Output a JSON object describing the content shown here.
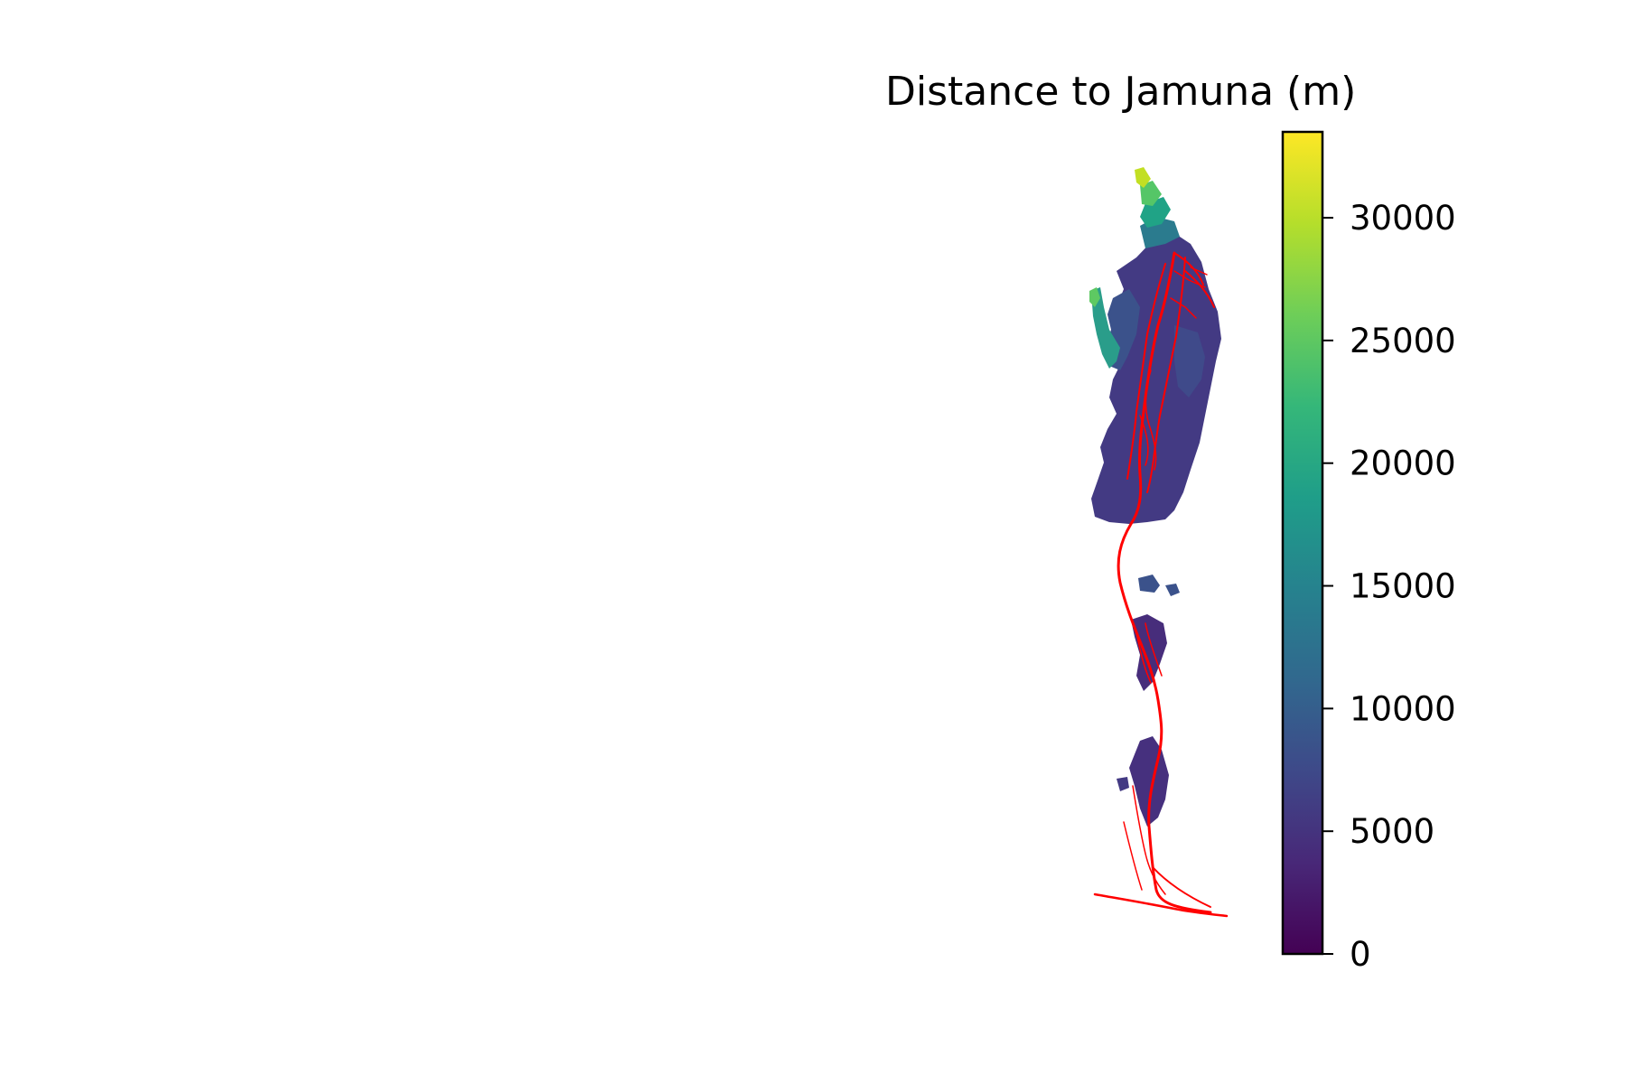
{
  "map": {
    "title": "Distance to Jamuna (m)",
    "overlay_color": "#ff0000",
    "overlay_feature": "river-channel-network"
  },
  "colorbar": {
    "colormap": "viridis",
    "min": 0,
    "max": 33500,
    "ticks": [
      0,
      5000,
      10000,
      15000,
      20000,
      25000,
      30000
    ],
    "stops": [
      "#440154",
      "#482878",
      "#3e4989",
      "#31688e",
      "#26828e",
      "#1f9e89",
      "#35b779",
      "#6ece58",
      "#b5de2b",
      "#fde725"
    ]
  }
}
